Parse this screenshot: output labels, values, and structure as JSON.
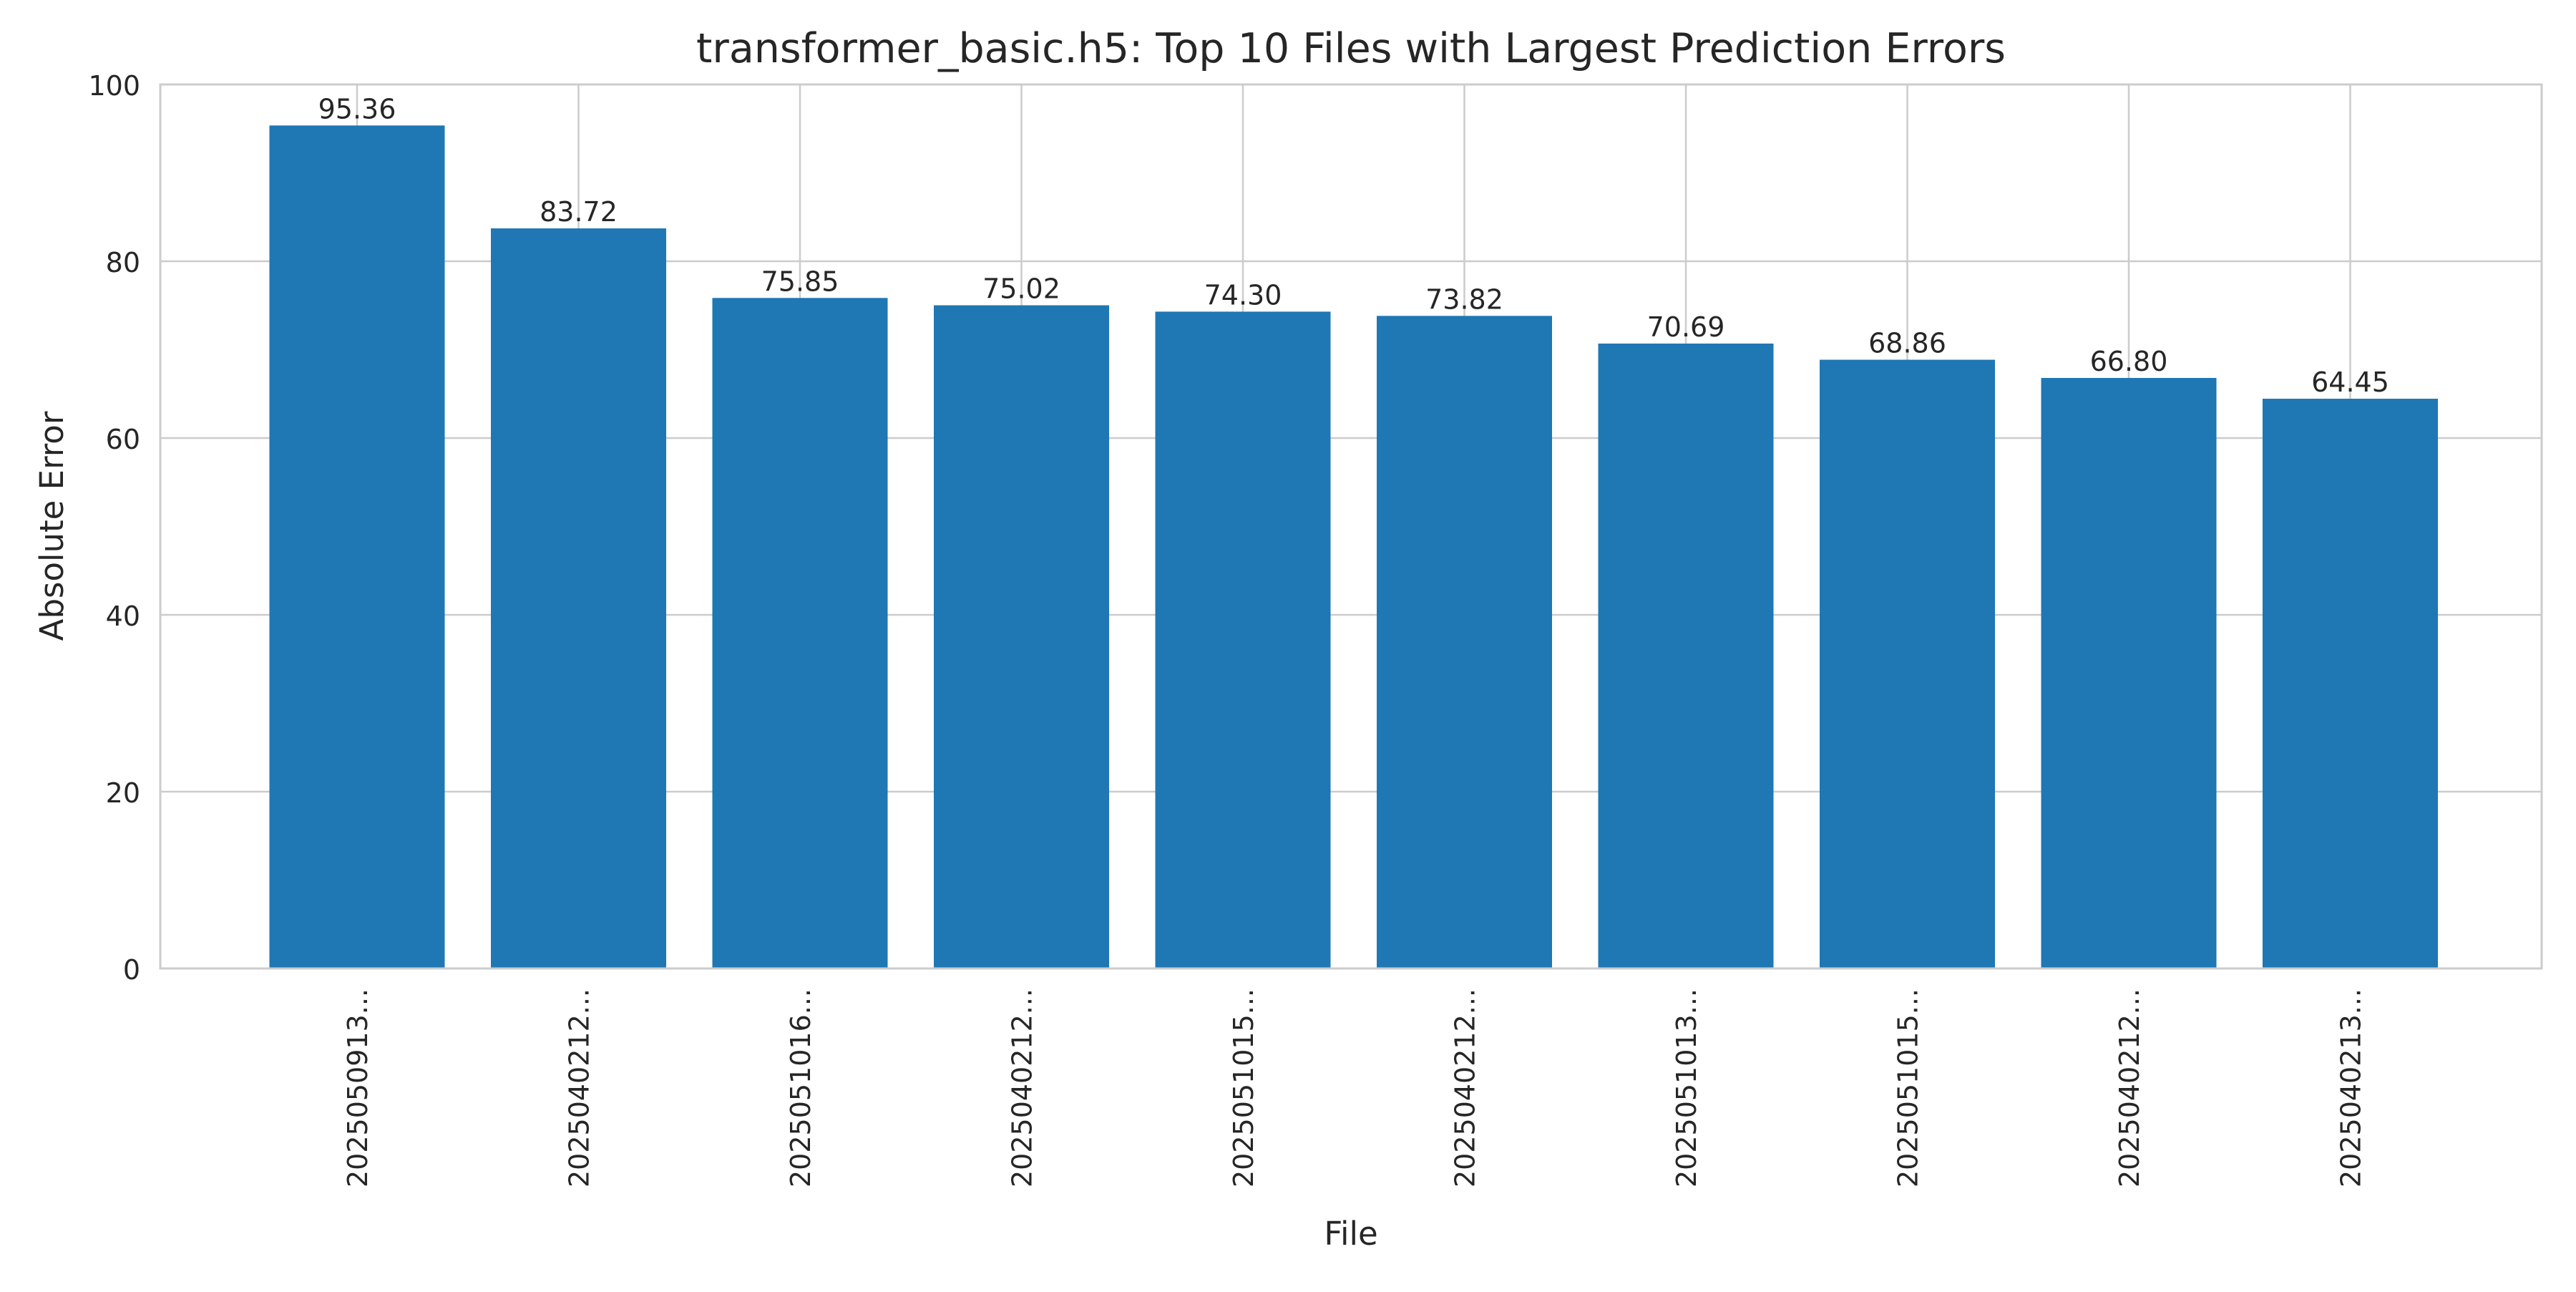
{
  "chart_data": {
    "type": "bar",
    "title": "transformer_basic.h5: Top 10 Files with Largest Prediction Errors",
    "xlabel": "File",
    "ylabel": "Absolute Error",
    "categories": [
      "2025050913...",
      "2025040212...",
      "2025051016...",
      "2025040212...",
      "2025051015...",
      "2025040212...",
      "2025051013...",
      "2025051015...",
      "2025040212...",
      "2025040213..."
    ],
    "values": [
      95.36,
      83.72,
      75.85,
      75.02,
      74.3,
      73.82,
      70.69,
      68.86,
      66.8,
      64.45
    ],
    "value_labels": [
      "95.36",
      "83.72",
      "75.85",
      "75.02",
      "74.30",
      "73.82",
      "70.69",
      "68.86",
      "66.80",
      "64.45"
    ],
    "ylim": [
      0,
      100
    ],
    "yticks": [
      0,
      20,
      40,
      60,
      80,
      100
    ],
    "ytick_labels": [
      "0",
      "20",
      "40",
      "60",
      "80",
      "100"
    ],
    "grid": true,
    "bar_color": "#1f77b4",
    "grid_color": "#cccccc"
  }
}
